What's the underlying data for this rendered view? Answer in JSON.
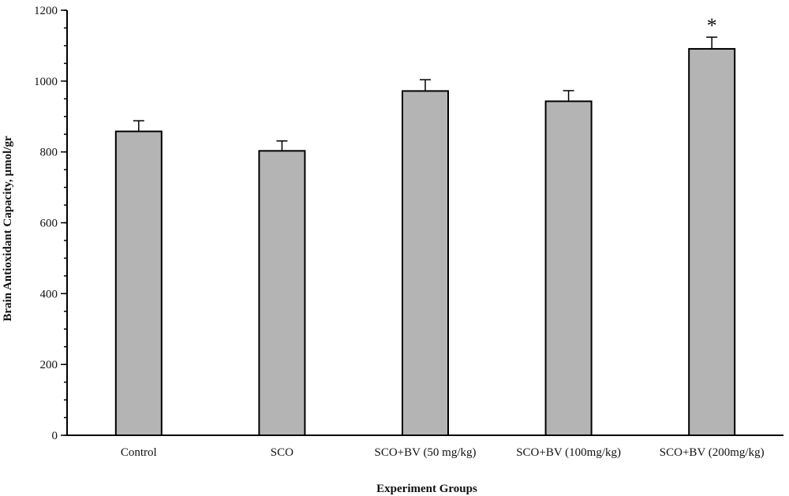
{
  "chart_data": {
    "type": "bar",
    "title": "",
    "xlabel": "Experiment Groups",
    "ylabel": "Brain Antioxidant Capacity, µmol/gr",
    "ylim": [
      0,
      1200
    ],
    "yticks": [
      "0",
      "200",
      "400",
      "600",
      "800",
      "1000",
      "1200"
    ],
    "categories": [
      "Control",
      "SCO",
      "SCO+BV (50 mg/kg)",
      "SCO+BV (100mg/kg)",
      "SCO+BV (200mg/kg)"
    ],
    "values": [
      858,
      803,
      972,
      943,
      1091
    ],
    "error_upper": [
      30,
      28,
      32,
      30,
      33
    ],
    "annotations": [
      "",
      "",
      "",
      "",
      "*"
    ],
    "grid": false,
    "legend": "none",
    "colors": {
      "bar_fill": "#b4b4b4",
      "bar_stroke": "#000000",
      "axis": "#000000"
    }
  }
}
